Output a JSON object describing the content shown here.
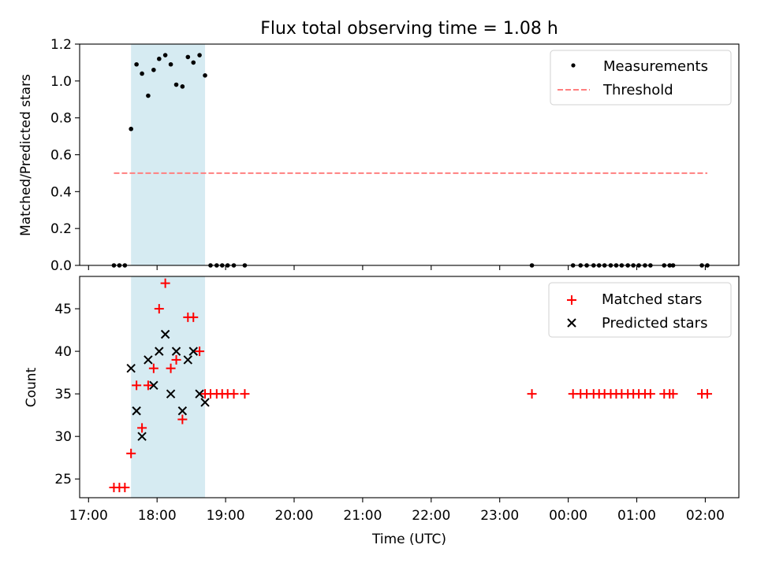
{
  "chart_data": [
    {
      "type": "scatter",
      "title": "Flux total observing time = 1.08 h",
      "xlabel": "",
      "ylabel": "Matched/Predicted stars",
      "xlim": [
        16.87,
        26.49
      ],
      "ylim": [
        0.0,
        1.2
      ],
      "yticks": [
        0.0,
        0.2,
        0.4,
        0.6,
        0.8,
        1.0,
        1.2
      ],
      "ytick_labels": [
        "0.0",
        "0.2",
        "0.4",
        "0.6",
        "0.8",
        "1.0",
        "1.2"
      ],
      "highlight_span": {
        "x0": 17.62,
        "x1": 18.7,
        "color": "#add8e6"
      },
      "legend_position": "upper-right",
      "series": [
        {
          "name": "Measurements",
          "marker": "dot",
          "color": "#000000",
          "x": [
            17.37,
            17.45,
            17.53,
            17.62,
            17.7,
            17.78,
            17.87,
            17.95,
            18.03,
            18.12,
            18.2,
            18.28,
            18.37,
            18.45,
            18.53,
            18.62,
            18.7,
            18.78,
            18.87,
            18.95,
            19.03,
            19.12,
            19.28,
            23.47,
            24.07,
            24.18,
            24.27,
            24.37,
            24.45,
            24.53,
            24.62,
            24.7,
            24.78,
            24.87,
            24.95,
            25.03,
            25.12,
            25.2,
            25.4,
            25.48,
            25.53,
            25.95,
            26.03
          ],
          "y": [
            0.0,
            0.0,
            0.0,
            0.74,
            1.09,
            1.04,
            0.92,
            1.06,
            1.12,
            1.14,
            1.09,
            0.98,
            0.97,
            1.13,
            1.1,
            1.14,
            1.03,
            0.0,
            0.0,
            0.0,
            0.0,
            0.0,
            0.0,
            0.0,
            0.0,
            0.0,
            0.0,
            0.0,
            0.0,
            0.0,
            0.0,
            0.0,
            0.0,
            0.0,
            0.0,
            0.0,
            0.0,
            0.0,
            0.0,
            0.0,
            0.0,
            0.0,
            0.0
          ]
        },
        {
          "name": "Threshold",
          "marker": "dashed-line",
          "color": "#ff7f7f",
          "x": [
            17.37,
            26.03
          ],
          "y": [
            0.5,
            0.5
          ]
        }
      ]
    },
    {
      "type": "scatter",
      "title": "",
      "xlabel": "Time (UTC)",
      "ylabel": "Count",
      "xlim": [
        16.87,
        26.49
      ],
      "ylim": [
        22.8,
        48.8
      ],
      "xticks": [
        17,
        18,
        19,
        20,
        21,
        22,
        23,
        24,
        25,
        26
      ],
      "xtick_labels": [
        "17:00",
        "18:00",
        "19:00",
        "20:00",
        "21:00",
        "22:00",
        "23:00",
        "00:00",
        "01:00",
        "02:00"
      ],
      "yticks": [
        25,
        30,
        35,
        40,
        45
      ],
      "ytick_labels": [
        "25",
        "30",
        "35",
        "40",
        "45"
      ],
      "highlight_span": {
        "x0": 17.62,
        "x1": 18.7,
        "color": "#add8e6"
      },
      "legend_position": "upper-right",
      "series": [
        {
          "name": "Matched stars",
          "marker": "plus",
          "color": "#ff0000",
          "x": [
            17.37,
            17.45,
            17.53,
            17.62,
            17.7,
            17.78,
            17.87,
            17.95,
            18.03,
            18.12,
            18.2,
            18.28,
            18.37,
            18.45,
            18.53,
            18.62,
            18.7,
            18.78,
            18.87,
            18.95,
            19.03,
            19.12,
            19.28,
            23.47,
            24.07,
            24.18,
            24.27,
            24.37,
            24.45,
            24.53,
            24.62,
            24.7,
            24.78,
            24.87,
            24.95,
            25.03,
            25.12,
            25.2,
            25.4,
            25.48,
            25.53,
            25.95,
            26.03
          ],
          "y": [
            24,
            24,
            24,
            28,
            36,
            31,
            36,
            38,
            45,
            48,
            38,
            39,
            32,
            44,
            44,
            40,
            35,
            35,
            35,
            35,
            35,
            35,
            35,
            35,
            35,
            35,
            35,
            35,
            35,
            35,
            35,
            35,
            35,
            35,
            35,
            35,
            35,
            35,
            35,
            35,
            35,
            35,
            35
          ]
        },
        {
          "name": "Predicted stars",
          "marker": "x",
          "color": "#000000",
          "x": [
            17.62,
            17.7,
            17.78,
            17.87,
            17.95,
            18.03,
            18.12,
            18.2,
            18.28,
            18.37,
            18.45,
            18.53,
            18.62,
            18.7
          ],
          "y": [
            38,
            33,
            30,
            39,
            36,
            40,
            42,
            35,
            40,
            33,
            39,
            40,
            35,
            34
          ]
        }
      ]
    }
  ]
}
